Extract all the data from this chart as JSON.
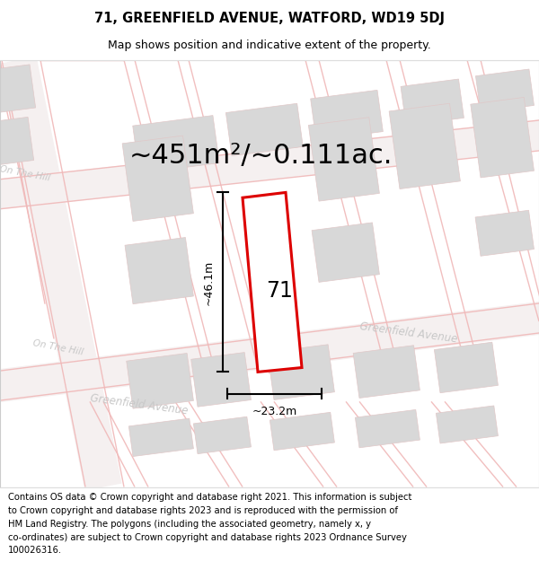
{
  "title_line1": "71, GREENFIELD AVENUE, WATFORD, WD19 5DJ",
  "title_line2": "Map shows position and indicative extent of the property.",
  "area_text": "~451m²/~0.111ac.",
  "property_number": "71",
  "dim_width_label": "~23.2m",
  "dim_height_label": "~46.1m",
  "footer_text": "Contains OS data © Crown copyright and database right 2021. This information is subject to Crown copyright and database rights 2023 and is reproduced with the permission of HM Land Registry. The polygons (including the associated geometry, namely x, y co-ordinates) are subject to Crown copyright and database rights 2023 Ordnance Survey 100026316.",
  "bg_color": "#f2f2f2",
  "map_bg_color": "#ffffff",
  "plot_color": "#dd0000",
  "street_color": "#f0b8b8",
  "building_color": "#d8d8d8",
  "building_edge_color": "#e0c8c8",
  "title_fontsize": 10.5,
  "subtitle_fontsize": 9,
  "area_fontsize": 22,
  "footer_fontsize": 7.2,
  "street_label_color": "#c8c8c8"
}
